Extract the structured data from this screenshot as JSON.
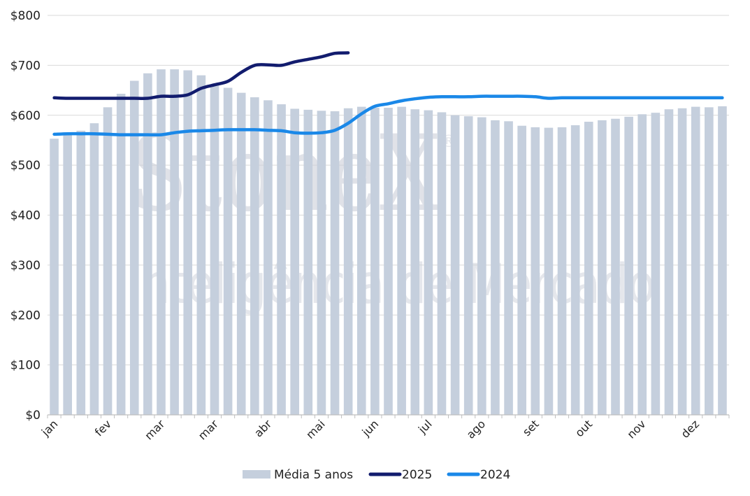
{
  "colors": {
    "bar": "#c5cfdd",
    "series_2025": "#121c6e",
    "series_2024": "#1a88e8",
    "grid": "#d9d9d9",
    "axis": "#bfbfbf"
  },
  "watermark": {
    "brand": "StoneX",
    "registered": "®",
    "tagline": "Inteligência de Mercado"
  },
  "chart_data": {
    "type": "bar",
    "ylim": [
      0,
      800
    ],
    "yticks": [
      0,
      100,
      200,
      300,
      400,
      500,
      600,
      700,
      800
    ],
    "ytick_labels": [
      "$0",
      "$100",
      "$200",
      "$300",
      "$400",
      "$500",
      "$600",
      "$700",
      "$800"
    ],
    "xtick_labels": [
      "jan",
      "fev",
      "mar",
      "mar",
      "abr",
      "mai",
      "jun",
      "jul",
      "ago",
      "set",
      "out",
      "nov",
      "dez"
    ],
    "xtick_weeks": [
      1,
      5,
      9,
      13,
      17,
      21,
      25,
      29,
      33,
      37,
      41,
      45,
      49
    ],
    "n_weeks": 51,
    "legend": [
      "Média 5 anos",
      "2025",
      "2024"
    ],
    "grid": true,
    "legend_position": "bottom",
    "series": [
      {
        "name": "Média 5 anos",
        "type": "bar",
        "values": [
          553,
          563,
          569,
          584,
          616,
          643,
          669,
          684,
          692,
          692,
          690,
          680,
          662,
          655,
          645,
          636,
          630,
          622,
          613,
          611,
          609,
          608,
          614,
          617,
          615,
          615,
          617,
          612,
          610,
          606,
          600,
          598,
          596,
          590,
          588,
          579,
          576,
          575,
          576,
          580,
          587,
          590,
          593,
          597,
          602,
          605,
          612,
          614,
          617,
          616,
          618
        ]
      },
      {
        "name": "2025",
        "type": "line",
        "x": [
          1,
          2,
          3,
          4,
          5,
          6,
          7,
          8,
          9,
          10,
          11,
          12,
          13,
          14,
          15,
          16,
          17,
          18,
          19,
          20,
          21,
          22,
          23
        ],
        "values": [
          635,
          634,
          634,
          634,
          634,
          634,
          634,
          634,
          638,
          638,
          641,
          654,
          661,
          668,
          686,
          700,
          701,
          700,
          707,
          712,
          717,
          724,
          725
        ]
      },
      {
        "name": "2024",
        "type": "line",
        "x": [
          1,
          2,
          3,
          4,
          5,
          6,
          7,
          8,
          9,
          10,
          11,
          12,
          13,
          14,
          15,
          16,
          17,
          18,
          19,
          20,
          21,
          22,
          23,
          24,
          25,
          26,
          27,
          28,
          29,
          30,
          31,
          32,
          33,
          34,
          35,
          36,
          37,
          38,
          39,
          40,
          41,
          42,
          43,
          44,
          45,
          46,
          47,
          48,
          49,
          50,
          51
        ],
        "values": [
          562,
          563,
          563,
          563,
          562,
          561,
          561,
          561,
          561,
          565,
          568,
          569,
          570,
          571,
          571,
          571,
          570,
          569,
          565,
          564,
          565,
          570,
          584,
          603,
          618,
          623,
          629,
          633,
          636,
          637,
          637,
          637,
          638,
          638,
          638,
          638,
          637,
          634,
          635,
          635,
          635,
          635,
          635,
          635,
          635,
          635,
          635,
          635,
          635,
          635,
          635
        ]
      }
    ]
  }
}
